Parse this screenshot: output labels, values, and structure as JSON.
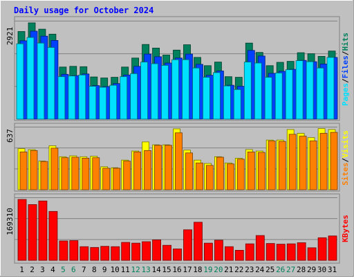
{
  "title": "Daily usage for October 2024",
  "colors": {
    "background": "#C0C0C0",
    "title": "#0000FF",
    "hits": "#00805C",
    "files": "#0040FF",
    "pages": "#00E0FF",
    "visits": "#FFFF00",
    "sites": "#FF8000",
    "kbytes": "#FF0000",
    "weekend_day_label": "#00805C",
    "weekday_label": "#000000"
  },
  "chart_data": [
    {
      "type": "bar",
      "title": "Daily usage for October 2024",
      "panel": "hits-files-pages",
      "ymax_label": "2921",
      "ylim": [
        0,
        2921
      ],
      "legend": [
        "Pages",
        "Files",
        "Hits"
      ],
      "categories": [
        "1",
        "2",
        "3",
        "4",
        "5",
        "6",
        "7",
        "8",
        "9",
        "10",
        "11",
        "12",
        "13",
        "14",
        "15",
        "16",
        "17",
        "18",
        "19",
        "20",
        "21",
        "22",
        "23",
        "24",
        "25",
        "26",
        "27",
        "28",
        "29",
        "30",
        "31"
      ],
      "series": [
        {
          "name": "Hits",
          "values": [
            2640,
            2900,
            2710,
            2560,
            1570,
            1590,
            1580,
            1270,
            1240,
            1260,
            1570,
            1840,
            2250,
            2140,
            1930,
            2080,
            2240,
            1860,
            1610,
            1720,
            1280,
            1260,
            2290,
            2010,
            1610,
            1710,
            1740,
            2000,
            1970,
            1890,
            2050
          ]
        },
        {
          "name": "Files",
          "values": [
            2360,
            2650,
            2500,
            2370,
            1350,
            1310,
            1360,
            1010,
            980,
            1070,
            1330,
            1590,
            1960,
            1880,
            1690,
            1840,
            1960,
            1650,
            1320,
            1450,
            1020,
            990,
            2070,
            1900,
            1380,
            1440,
            1500,
            1770,
            1730,
            1660,
            1860
          ]
        },
        {
          "name": "Pages",
          "values": [
            2270,
            2460,
            2290,
            2160,
            1280,
            1300,
            1330,
            990,
            960,
            1020,
            1280,
            1370,
            1720,
            1670,
            1620,
            1790,
            1790,
            1540,
            1260,
            1400,
            1000,
            890,
            1720,
            1690,
            1260,
            1390,
            1490,
            1760,
            1730,
            1540,
            1860
          ]
        }
      ]
    },
    {
      "type": "bar",
      "panel": "visits-sites",
      "ymax_label": "637",
      "ylim": [
        0,
        637
      ],
      "legend": [
        "Sites",
        "Visits"
      ],
      "categories": [
        "1",
        "2",
        "3",
        "4",
        "5",
        "6",
        "7",
        "8",
        "9",
        "10",
        "11",
        "12",
        "13",
        "14",
        "15",
        "16",
        "17",
        "18",
        "19",
        "20",
        "21",
        "22",
        "23",
        "24",
        "25",
        "26",
        "27",
        "28",
        "29",
        "30",
        "31"
      ],
      "series": [
        {
          "name": "Visits",
          "values": [
            430,
            420,
            300,
            460,
            345,
            355,
            345,
            350,
            240,
            230,
            310,
            405,
            500,
            470,
            470,
            637,
            415,
            310,
            275,
            345,
            280,
            330,
            420,
            405,
            520,
            520,
            630,
            590,
            545,
            640,
            630
          ]
        },
        {
          "name": "Sites",
          "values": [
            395,
            410,
            295,
            435,
            335,
            340,
            330,
            335,
            225,
            225,
            300,
            395,
            410,
            465,
            465,
            595,
            385,
            280,
            255,
            340,
            270,
            320,
            395,
            390,
            510,
            505,
            580,
            560,
            510,
            590,
            600
          ]
        }
      ]
    },
    {
      "type": "bar",
      "panel": "kbytes",
      "ymax_label": "169310",
      "ylim": [
        0,
        169310
      ],
      "legend": [
        "KBytes"
      ],
      "categories": [
        "1",
        "2",
        "3",
        "4",
        "5",
        "6",
        "7",
        "8",
        "9",
        "10",
        "11",
        "12",
        "13",
        "14",
        "15",
        "16",
        "17",
        "18",
        "19",
        "20",
        "21",
        "22",
        "23",
        "24",
        "25",
        "26",
        "27",
        "28",
        "29",
        "30",
        "31"
      ],
      "series": [
        {
          "name": "KBytes",
          "values": [
            169310,
            155000,
            165000,
            136000,
            54000,
            55000,
            38000,
            36000,
            39000,
            38000,
            50000,
            48000,
            52000,
            57000,
            42000,
            32000,
            85000,
            106000,
            48000,
            56000,
            38000,
            28000,
            46000,
            69000,
            47000,
            45000,
            46000,
            49000,
            35000,
            63000,
            68000
          ]
        }
      ]
    }
  ]
}
